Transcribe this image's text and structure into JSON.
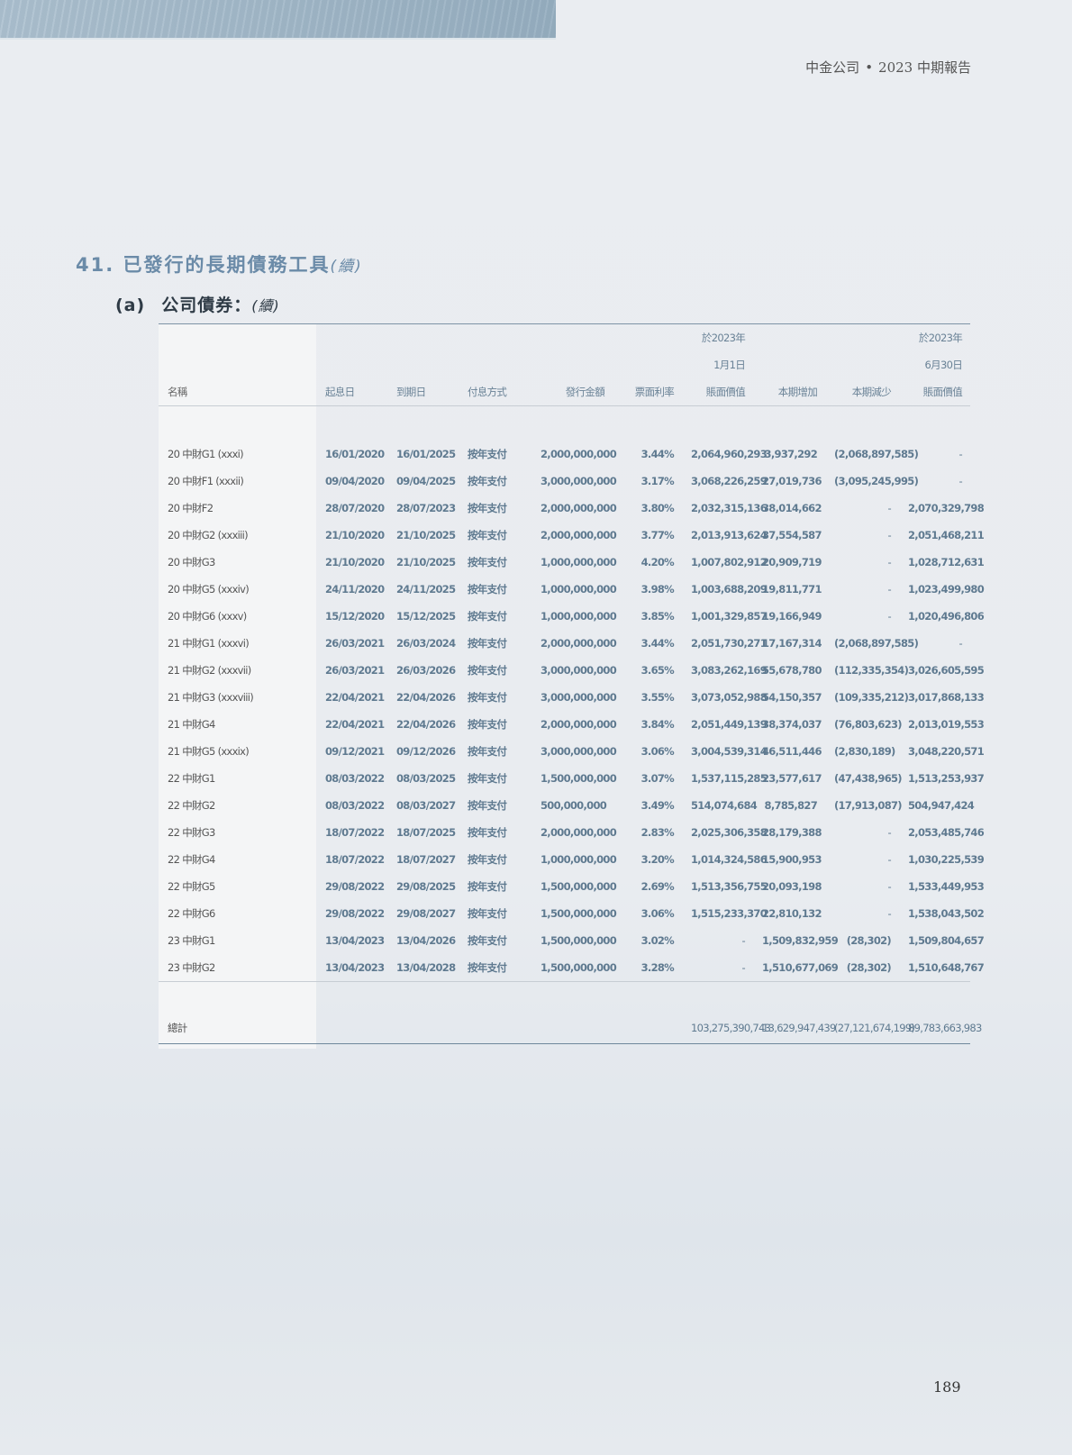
{
  "running_head": {
    "company": "中金公司",
    "separator": "•",
    "report": "2023 中期報告"
  },
  "section": {
    "number": "41.",
    "title": "已發行的長期債務工具",
    "cont": "(續)"
  },
  "subsection": {
    "label": "(a)",
    "title": "公司債券：",
    "cont": "(續)"
  },
  "table": {
    "header_top": [
      "",
      "",
      "",
      "",
      "",
      "",
      "於2023年",
      "",
      "",
      "於2023年"
    ],
    "header_mid": [
      "",
      "",
      "",
      "",
      "",
      "",
      "1月1日",
      "",
      "",
      "6月30日"
    ],
    "columns": [
      "名稱",
      "起息日",
      "到期日",
      "付息方式",
      "發行金額",
      "票面利率",
      "賬面價值",
      "本期增加",
      "本期減少",
      "賬面價值"
    ],
    "rows": [
      [
        "20 中財G1 (xxxi)",
        "16/01/2020",
        "16/01/2025",
        "按年支付",
        "2,000,000,000",
        "3.44%",
        "2,064,960,293",
        "3,937,292",
        "(2,068,897,585)",
        "-"
      ],
      [
        "20 中財F1 (xxxii)",
        "09/04/2020",
        "09/04/2025",
        "按年支付",
        "3,000,000,000",
        "3.17%",
        "3,068,226,259",
        "27,019,736",
        "(3,095,245,995)",
        "-"
      ],
      [
        "20 中財F2",
        "28/07/2020",
        "28/07/2023",
        "按年支付",
        "2,000,000,000",
        "3.80%",
        "2,032,315,136",
        "38,014,662",
        "-",
        "2,070,329,798"
      ],
      [
        "20 中財G2 (xxxiii)",
        "21/10/2020",
        "21/10/2025",
        "按年支付",
        "2,000,000,000",
        "3.77%",
        "2,013,913,624",
        "37,554,587",
        "-",
        "2,051,468,211"
      ],
      [
        "20 中財G3",
        "21/10/2020",
        "21/10/2025",
        "按年支付",
        "1,000,000,000",
        "4.20%",
        "1,007,802,912",
        "20,909,719",
        "-",
        "1,028,712,631"
      ],
      [
        "20 中財G5 (xxxiv)",
        "24/11/2020",
        "24/11/2025",
        "按年支付",
        "1,000,000,000",
        "3.98%",
        "1,003,688,209",
        "19,811,771",
        "-",
        "1,023,499,980"
      ],
      [
        "20 中財G6 (xxxv)",
        "15/12/2020",
        "15/12/2025",
        "按年支付",
        "1,000,000,000",
        "3.85%",
        "1,001,329,857",
        "19,166,949",
        "-",
        "1,020,496,806"
      ],
      [
        "21 中財G1 (xxxvi)",
        "26/03/2021",
        "26/03/2024",
        "按年支付",
        "2,000,000,000",
        "3.44%",
        "2,051,730,271",
        "17,167,314",
        "(2,068,897,585)",
        "-"
      ],
      [
        "21 中財G2 (xxxvii)",
        "26/03/2021",
        "26/03/2026",
        "按年支付",
        "3,000,000,000",
        "3.65%",
        "3,083,262,169",
        "55,678,780",
        "(112,335,354)",
        "3,026,605,595"
      ],
      [
        "21 中財G3 (xxxviii)",
        "22/04/2021",
        "22/04/2026",
        "按年支付",
        "3,000,000,000",
        "3.55%",
        "3,073,052,988",
        "54,150,357",
        "(109,335,212)",
        "3,017,868,133"
      ],
      [
        "21 中財G4",
        "22/04/2021",
        "22/04/2026",
        "按年支付",
        "2,000,000,000",
        "3.84%",
        "2,051,449,139",
        "38,374,037",
        "(76,803,623)",
        "2,013,019,553"
      ],
      [
        "21 中財G5 (xxxix)",
        "09/12/2021",
        "09/12/2026",
        "按年支付",
        "3,000,000,000",
        "3.06%",
        "3,004,539,314",
        "46,511,446",
        "(2,830,189)",
        "3,048,220,571"
      ],
      [
        "22 中財G1",
        "08/03/2022",
        "08/03/2025",
        "按年支付",
        "1,500,000,000",
        "3.07%",
        "1,537,115,285",
        "23,577,617",
        "(47,438,965)",
        "1,513,253,937"
      ],
      [
        "22 中財G2",
        "08/03/2022",
        "08/03/2027",
        "按年支付",
        "500,000,000",
        "3.49%",
        "514,074,684",
        "8,785,827",
        "(17,913,087)",
        "504,947,424"
      ],
      [
        "22 中財G3",
        "18/07/2022",
        "18/07/2025",
        "按年支付",
        "2,000,000,000",
        "2.83%",
        "2,025,306,358",
        "28,179,388",
        "-",
        "2,053,485,746"
      ],
      [
        "22 中財G4",
        "18/07/2022",
        "18/07/2027",
        "按年支付",
        "1,000,000,000",
        "3.20%",
        "1,014,324,586",
        "15,900,953",
        "-",
        "1,030,225,539"
      ],
      [
        "22 中財G5",
        "29/08/2022",
        "29/08/2025",
        "按年支付",
        "1,500,000,000",
        "2.69%",
        "1,513,356,755",
        "20,093,198",
        "-",
        "1,533,449,953"
      ],
      [
        "22 中財G6",
        "29/08/2022",
        "29/08/2027",
        "按年支付",
        "1,500,000,000",
        "3.06%",
        "1,515,233,370",
        "22,810,132",
        "-",
        "1,538,043,502"
      ],
      [
        "23 中財G1",
        "13/04/2023",
        "13/04/2026",
        "按年支付",
        "1,500,000,000",
        "3.02%",
        "-",
        "1,509,832,959",
        "(28,302)",
        "1,509,804,657"
      ],
      [
        "23 中財G2",
        "13/04/2023",
        "13/04/2028",
        "按年支付",
        "1,500,000,000",
        "3.28%",
        "-",
        "1,510,677,069",
        "(28,302)",
        "1,510,648,767"
      ]
    ],
    "total": [
      "總計",
      "",
      "",
      "",
      "",
      "",
      "103,275,390,743",
      "13,629,947,439",
      "(27,121,674,199)",
      "89,783,663,983"
    ]
  },
  "page_number": "189"
}
